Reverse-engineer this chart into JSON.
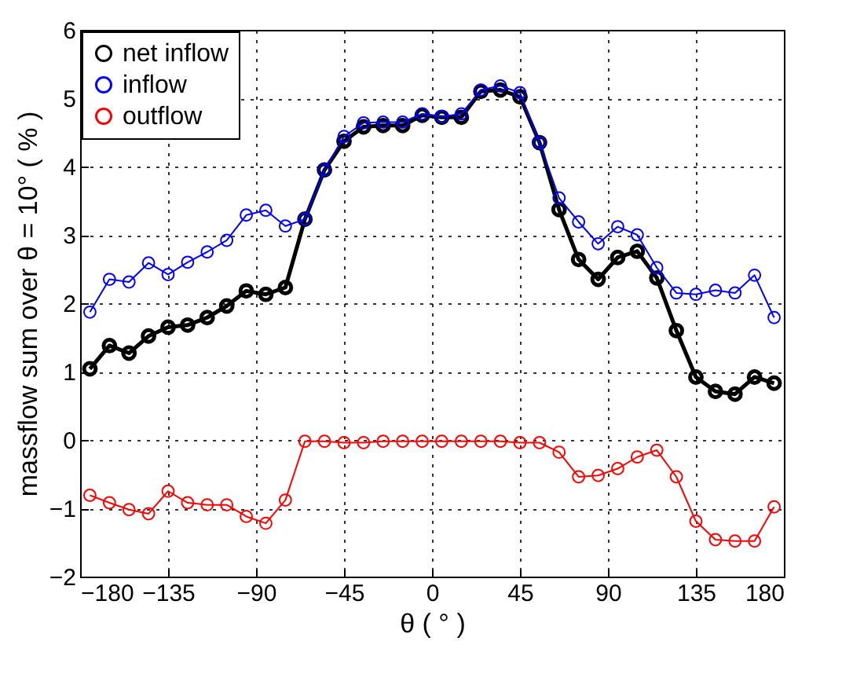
{
  "chart_data": {
    "type": "line",
    "xlabel": "θ ( ° )",
    "ylabel": "massflow sum over  θ = 10° ( % )",
    "x": [
      -175,
      -165,
      -155,
      -145,
      -135,
      -125,
      -115,
      -105,
      -95,
      -85,
      -75,
      -65,
      -55,
      -45,
      -35,
      -25,
      -15,
      -5,
      5,
      15,
      25,
      35,
      45,
      55,
      65,
      75,
      85,
      95,
      105,
      115,
      125,
      135,
      145,
      155,
      165,
      175
    ],
    "series": [
      {
        "name": "net inflow",
        "color": "#000000",
        "values": [
          1.04,
          1.38,
          1.27,
          1.52,
          1.65,
          1.68,
          1.79,
          1.96,
          2.18,
          2.13,
          2.23,
          3.23,
          3.95,
          4.37,
          4.58,
          4.6,
          4.6,
          4.75,
          4.72,
          4.72,
          5.1,
          5.12,
          5.02,
          4.35,
          3.37,
          2.64,
          2.35,
          2.67,
          2.76,
          2.37,
          1.6,
          0.92,
          0.71,
          0.67,
          0.92,
          0.83
        ]
      },
      {
        "name": "inflow",
        "color": "#0000ff",
        "values": [
          1.87,
          2.35,
          2.31,
          2.59,
          2.42,
          2.6,
          2.75,
          2.92,
          3.29,
          3.36,
          3.13,
          3.23,
          3.95,
          4.44,
          4.64,
          4.65,
          4.65,
          4.77,
          4.73,
          4.77,
          5.12,
          5.18,
          5.08,
          4.35,
          3.54,
          3.19,
          2.87,
          3.12,
          3.0,
          2.52,
          2.15,
          2.13,
          2.19,
          2.15,
          2.41,
          1.79
        ]
      },
      {
        "name": "outflow",
        "color": "#ff0000",
        "values": [
          -0.81,
          -0.92,
          -1.02,
          -1.08,
          -0.75,
          -0.92,
          -0.95,
          -0.95,
          -1.12,
          -1.22,
          -0.88,
          -0.02,
          -0.02,
          -0.04,
          -0.04,
          -0.02,
          -0.02,
          -0.02,
          -0.02,
          -0.02,
          -0.02,
          -0.02,
          -0.04,
          -0.04,
          -0.18,
          -0.54,
          -0.52,
          -0.42,
          -0.25,
          -0.15,
          -0.54,
          -1.19,
          -1.46,
          -1.48,
          -1.48,
          -0.98
        ]
      }
    ],
    "xlim": [
      -180,
      180
    ],
    "xticks": [
      -180,
      -135,
      -90,
      -45,
      0,
      45,
      90,
      135,
      180
    ],
    "ylim": [
      -2,
      6
    ],
    "yticks": [
      -2,
      -1,
      0,
      1,
      2,
      3,
      4,
      5,
      6
    ],
    "grid": true,
    "legend": "top left",
    "marker": "circle",
    "line_style": "solid"
  }
}
